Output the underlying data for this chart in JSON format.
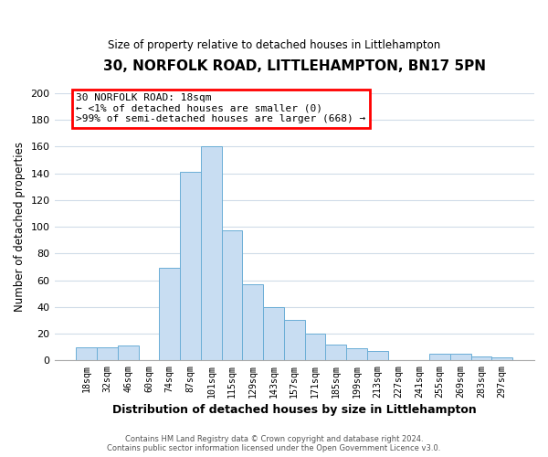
{
  "title": "30, NORFOLK ROAD, LITTLEHAMPTON, BN17 5PN",
  "subtitle": "Size of property relative to detached houses in Littlehampton",
  "xlabel": "Distribution of detached houses by size in Littlehampton",
  "ylabel": "Number of detached properties",
  "categories": [
    "18sqm",
    "32sqm",
    "46sqm",
    "60sqm",
    "74sqm",
    "87sqm",
    "101sqm",
    "115sqm",
    "129sqm",
    "143sqm",
    "157sqm",
    "171sqm",
    "185sqm",
    "199sqm",
    "213sqm",
    "227sqm",
    "241sqm",
    "255sqm",
    "269sqm",
    "283sqm",
    "297sqm"
  ],
  "values": [
    10,
    10,
    11,
    0,
    69,
    141,
    160,
    97,
    57,
    40,
    30,
    20,
    12,
    9,
    7,
    0,
    0,
    5,
    5,
    3,
    2
  ],
  "bar_color": "#c8ddf2",
  "bar_edge_color": "#6baed6",
  "ylim": [
    0,
    200
  ],
  "yticks": [
    0,
    20,
    40,
    60,
    80,
    100,
    120,
    140,
    160,
    180,
    200
  ],
  "annotation_box_text_line1": "30 NORFOLK ROAD: 18sqm",
  "annotation_box_text_line2": "← <1% of detached houses are smaller (0)",
  "annotation_box_text_line3": ">99% of semi-detached houses are larger (668) →",
  "footer_line1": "Contains HM Land Registry data © Crown copyright and database right 2024.",
  "footer_line2": "Contains public sector information licensed under the Open Government Licence v3.0.",
  "background_color": "#ffffff",
  "grid_color": "#d0dce8"
}
